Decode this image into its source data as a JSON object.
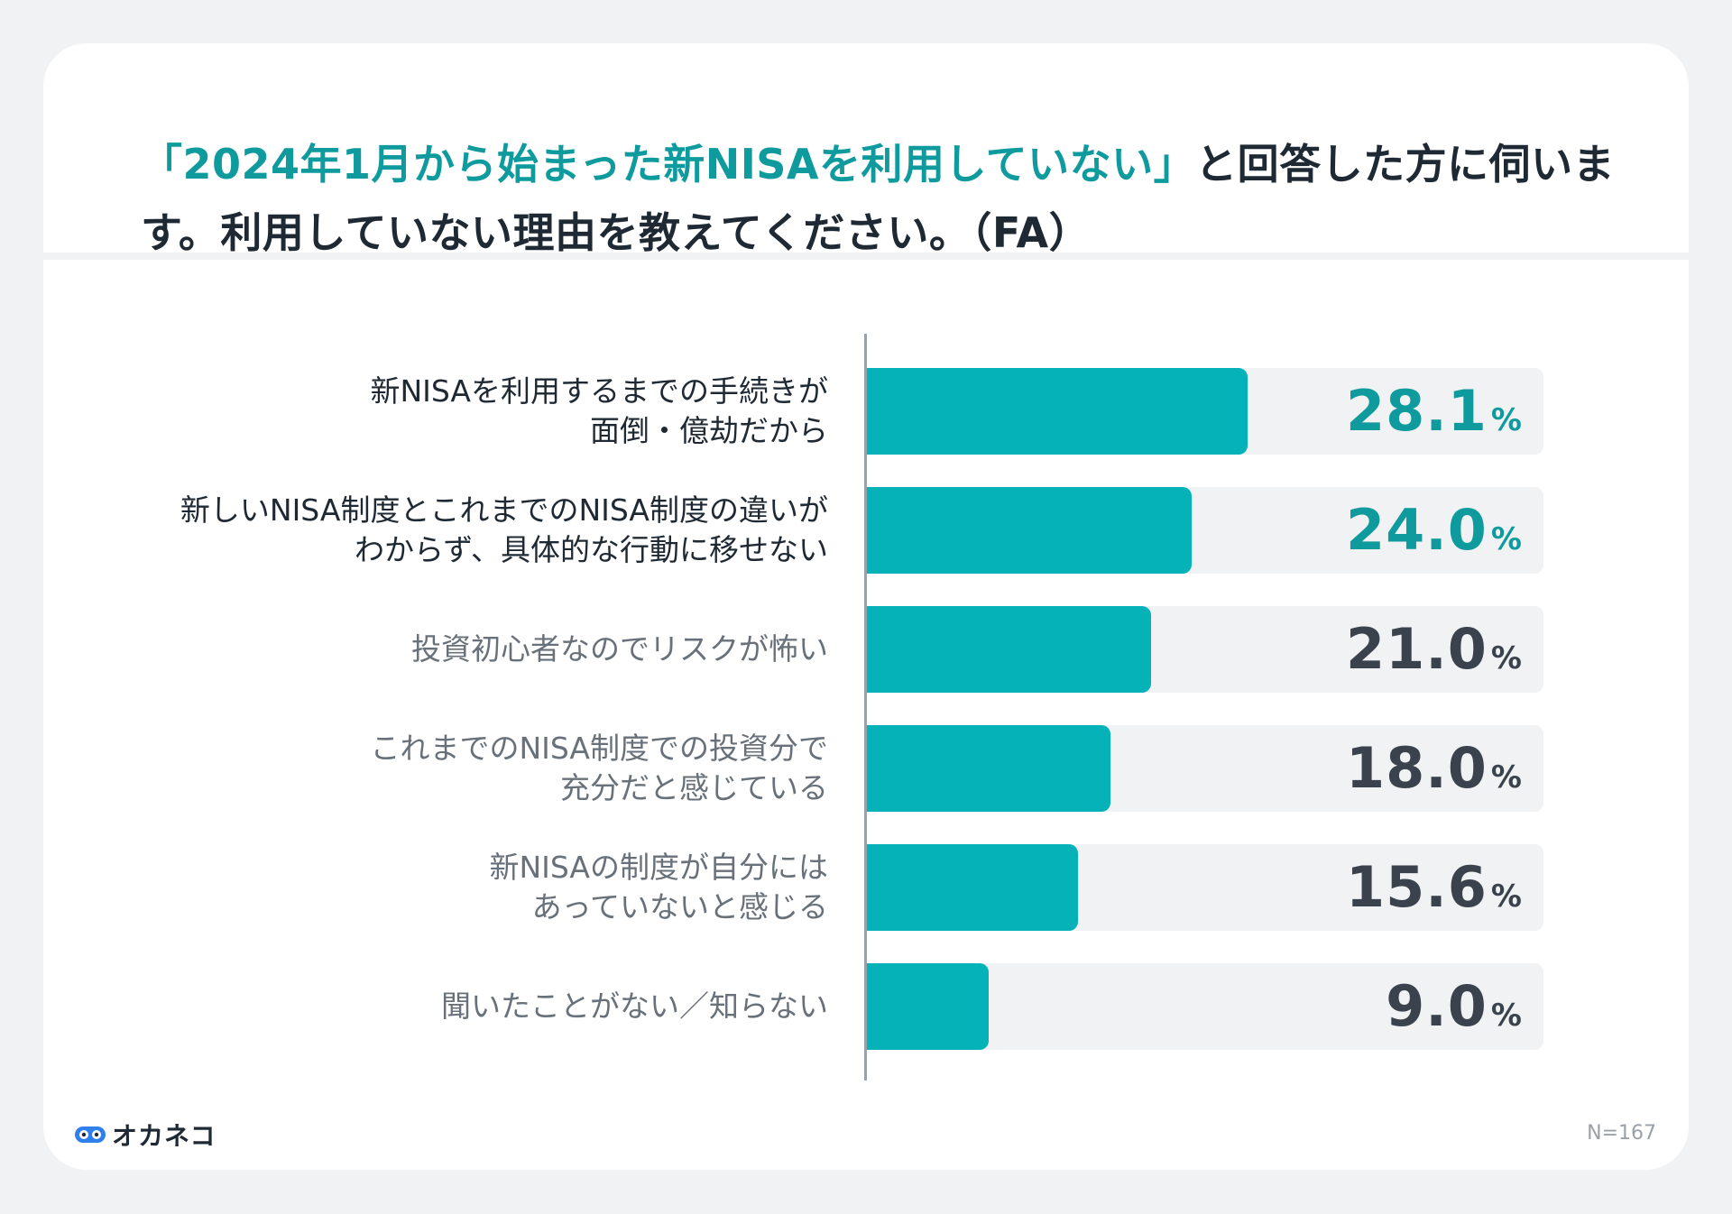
{
  "title": {
    "highlight": "「2024年1月から始まった新NISAを利用していない」",
    "rest": "と回答した方に伺います。利用していない理由を教えてください。（FA）"
  },
  "chart_data": {
    "type": "bar",
    "orientation": "horizontal",
    "categories": [
      "新NISAを利用するまでの手続きが\n面倒・億劫だから",
      "新しいNISA制度とこれまでのNISA制度の違いが\nわからず、具体的な行動に移せない",
      "投資初心者なのでリスクが怖い",
      "これまでのNISA制度での投資分で\n充分だと感じている",
      "新NISAの制度が自分には\nあっていないと感じる",
      "聞いたことがない／知らない"
    ],
    "values": [
      28.1,
      24.0,
      21.0,
      18.0,
      15.6,
      9.0
    ],
    "value_labels": [
      "28.1",
      "24.0",
      "21.0",
      "18.0",
      "15.6",
      "9.0"
    ],
    "unit": "%",
    "xlim": [
      0,
      50
    ],
    "highlighted_count": 2,
    "colors": {
      "bar": "#05b2b7",
      "track": "#f1f2f4",
      "highlight_text": "#0f9b9d",
      "normal_text": "#3a434d"
    }
  },
  "footer": {
    "brand": "オカネコ",
    "sample": "N=167"
  }
}
